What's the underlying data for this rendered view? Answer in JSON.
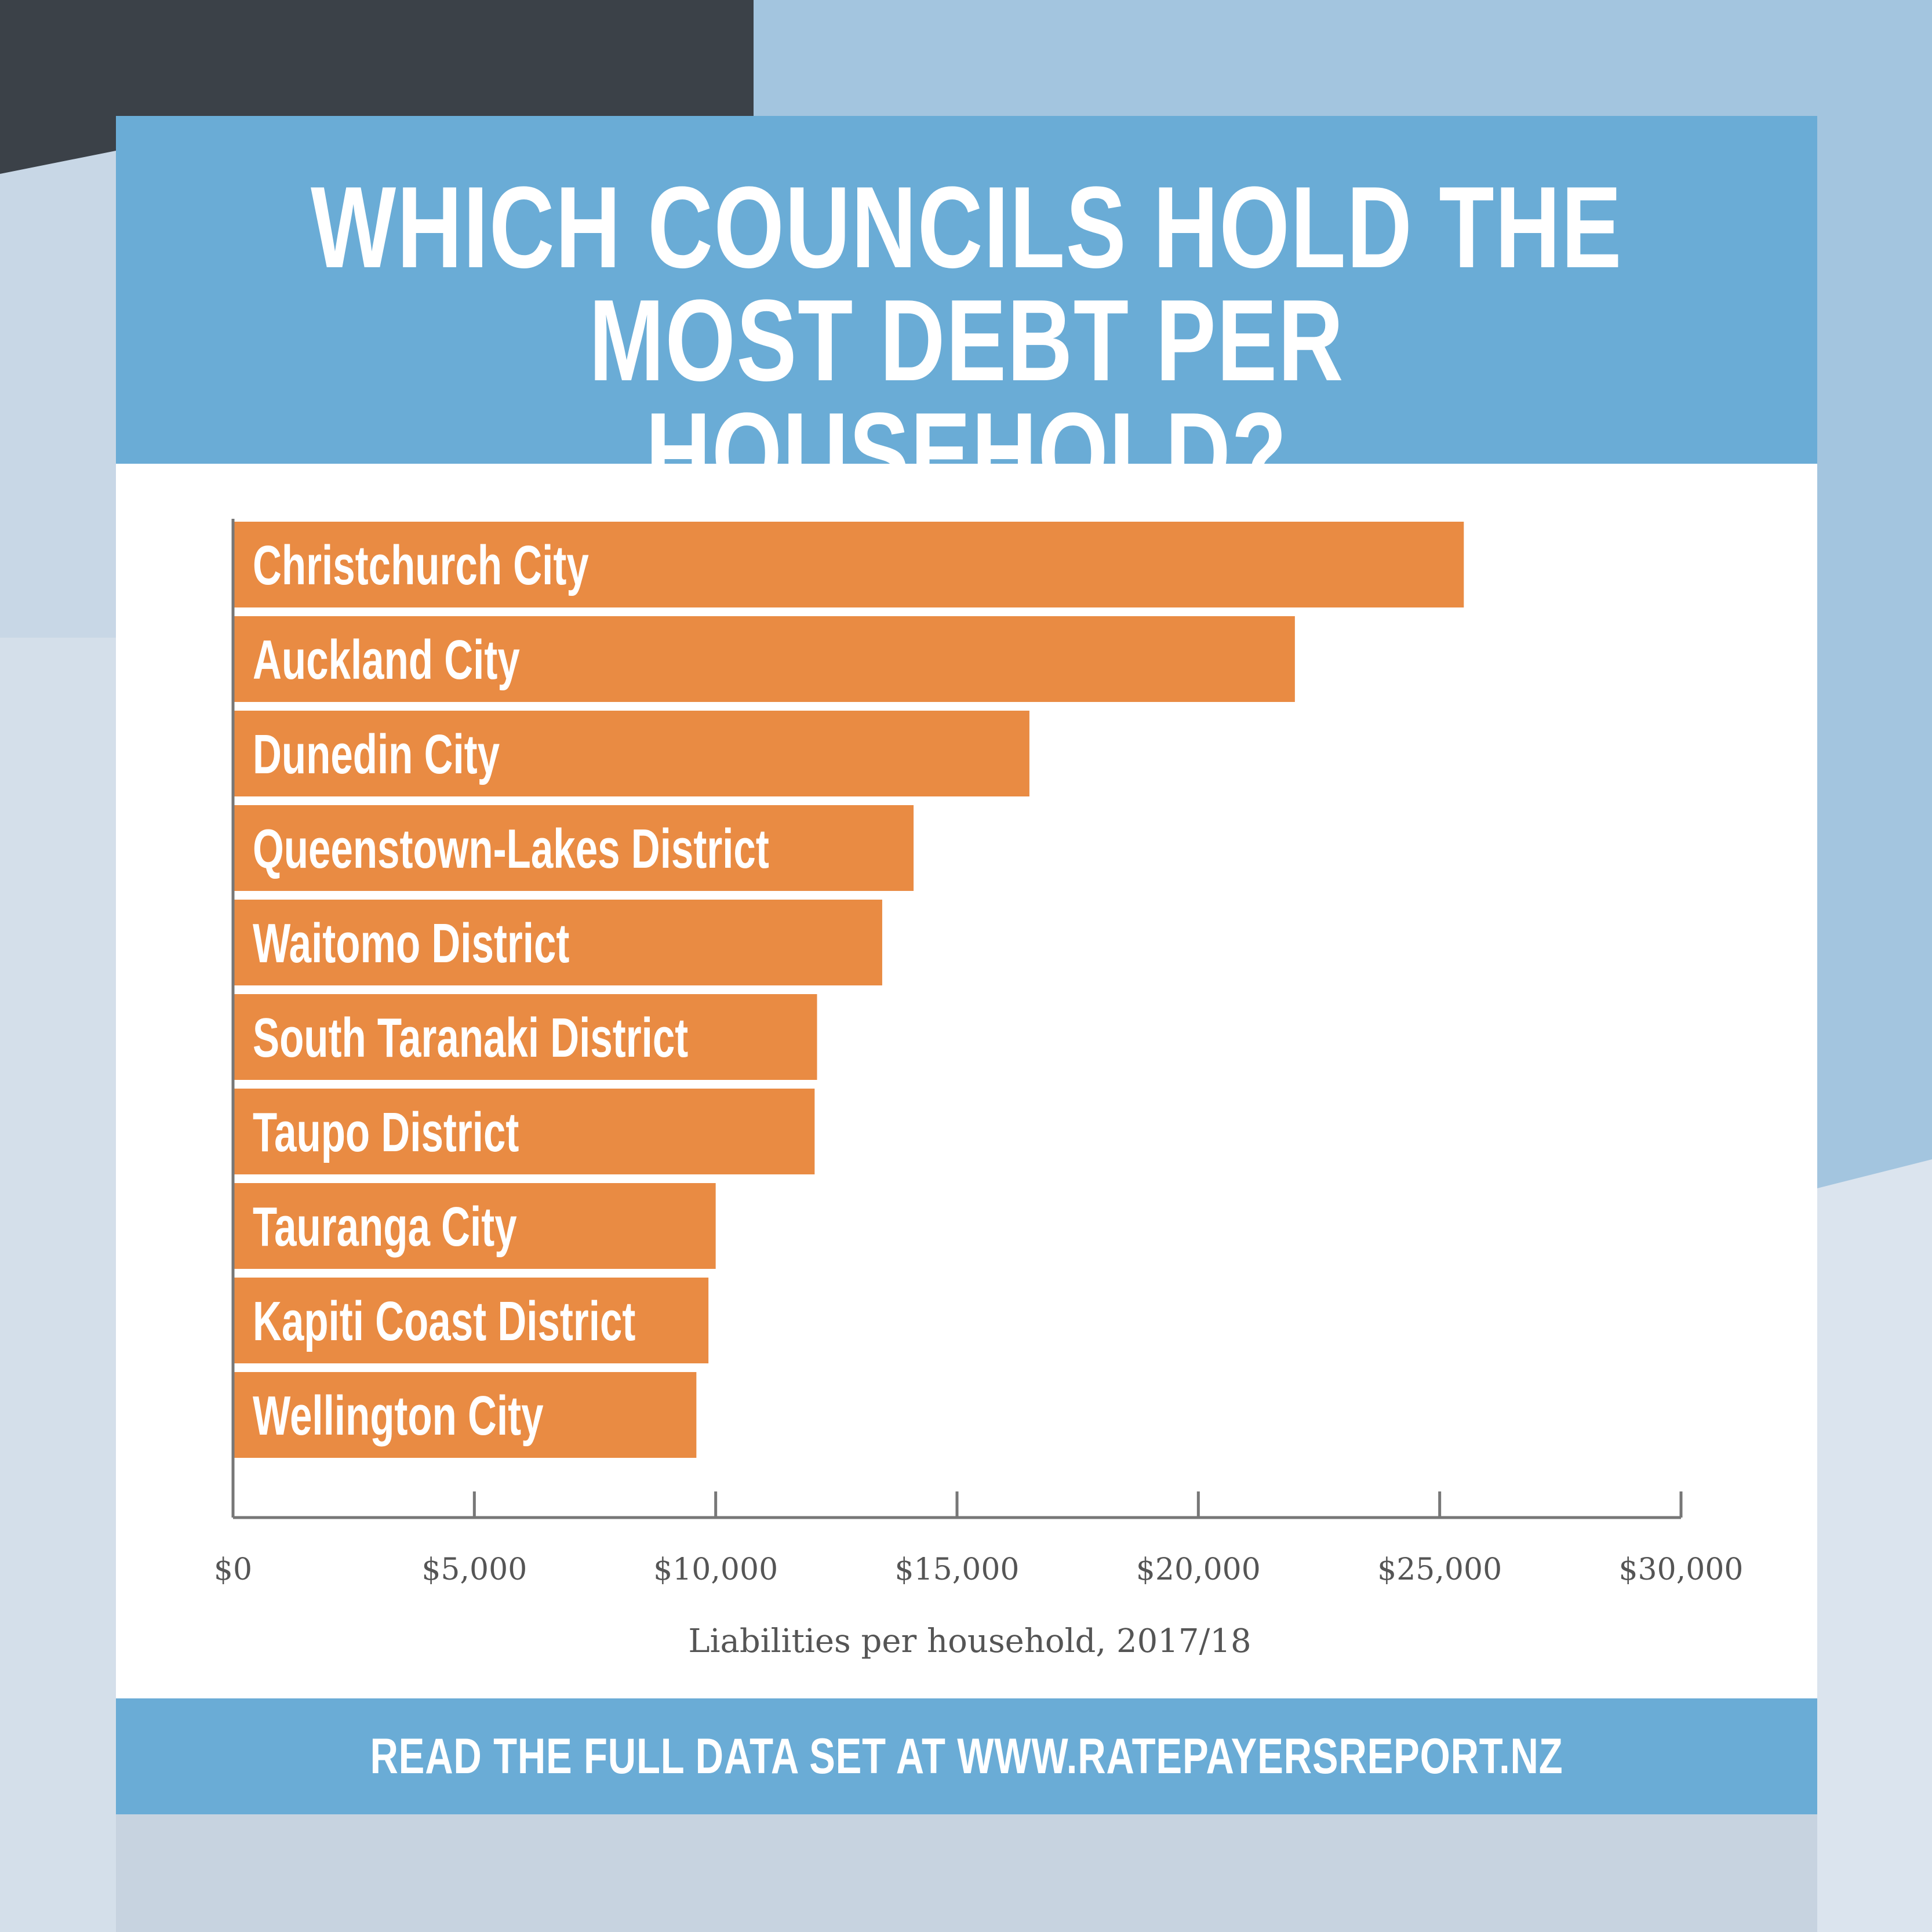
{
  "title": {
    "line1": "WHICH COUNCILS HOLD THE",
    "line2": "MOST DEBT PER HOUSEHOLD?"
  },
  "footer": {
    "text": "READ THE FULL DATA SET AT WWW.RATEPAYERSREPORT.NZ"
  },
  "colors": {
    "bar": "#e98b43",
    "banner": "#6aacd6",
    "panel": "#ffffff",
    "axis": "#777777"
  },
  "chart_data": {
    "type": "bar",
    "orientation": "horizontal",
    "categories": [
      "Christchurch City",
      "Auckland City",
      "Dunedin City",
      "Queenstown-Lakes District",
      "Waitomo District",
      "South Taranaki District",
      "Taupo District",
      "Tauranga City",
      "Kapiti Coast District",
      "Wellington City"
    ],
    "values": [
      25500,
      22000,
      16500,
      14100,
      13450,
      12100,
      12050,
      10000,
      9850,
      9600
    ],
    "xlabel": "Liabilities per household, 2017/18",
    "ylabel": "",
    "xlim": [
      0,
      30000
    ],
    "ticks": [
      0,
      5000,
      10000,
      15000,
      20000,
      25000,
      30000
    ],
    "tick_labels": [
      "$0",
      "$5,000",
      "$10,000",
      "$15,000",
      "$20,000",
      "$25,000",
      "$30,000"
    ],
    "grid": false,
    "legend": "none"
  }
}
